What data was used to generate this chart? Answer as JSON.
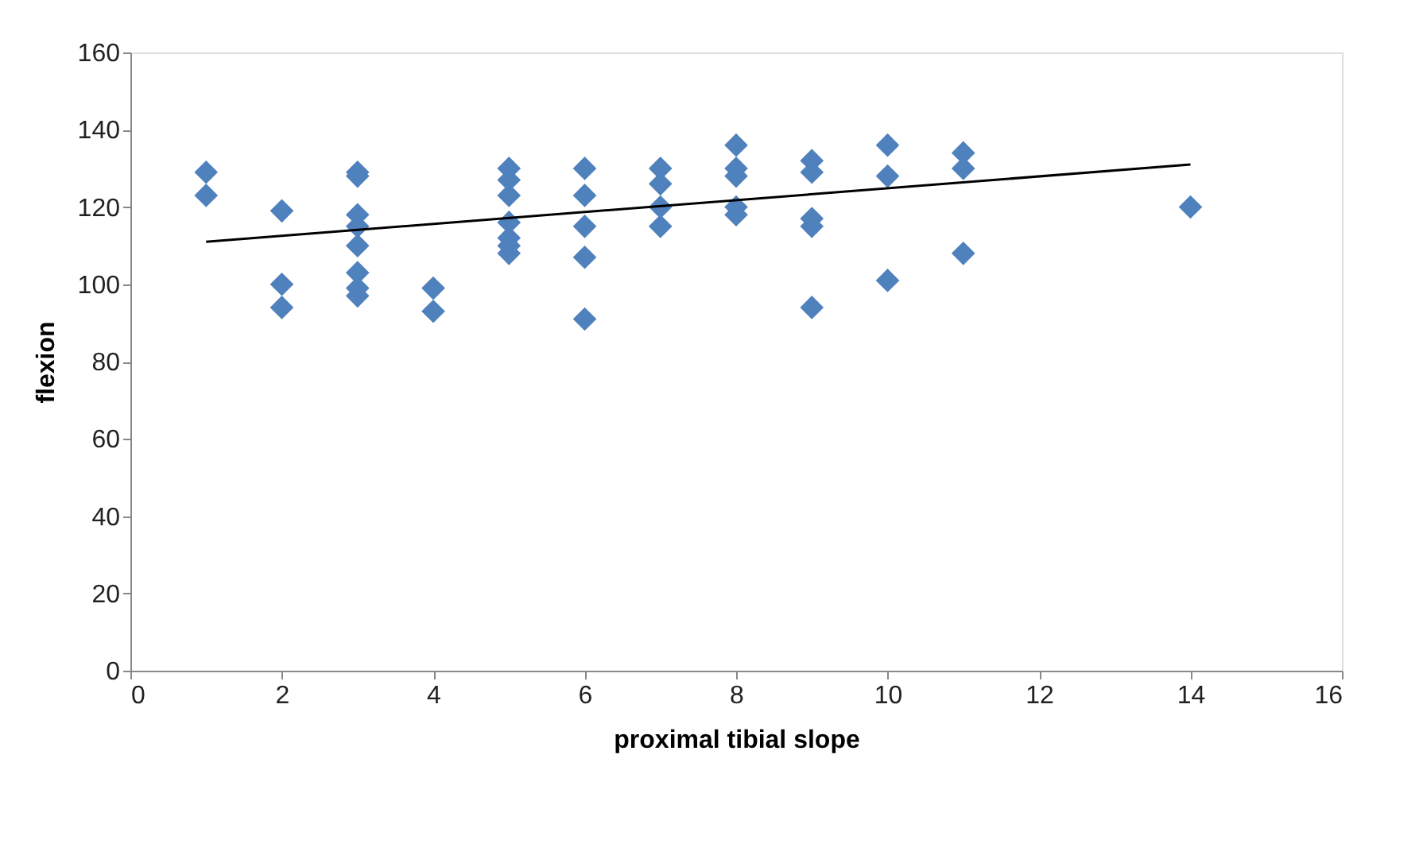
{
  "chart_data": {
    "type": "scatter",
    "xlabel": "proximal tibial slope",
    "ylabel": "flexion",
    "xlim": [
      0,
      16
    ],
    "xticks": [
      0,
      2,
      4,
      6,
      8,
      10,
      12,
      14,
      16
    ],
    "ylim": [
      0,
      160
    ],
    "yticks": [
      0,
      20,
      40,
      60,
      80,
      100,
      120,
      140,
      160
    ],
    "grid": false,
    "legend": false,
    "marker": "diamond",
    "series": [
      {
        "color": "#4f81bd",
        "x": [
          1,
          1,
          2,
          2,
          2,
          3,
          3,
          3,
          3,
          3,
          3,
          3,
          3,
          4,
          4,
          5,
          5,
          5,
          5,
          5,
          5,
          5,
          6,
          6,
          6,
          6,
          6,
          7,
          7,
          7,
          7,
          8,
          8,
          8,
          8,
          8,
          9,
          9,
          9,
          9,
          9,
          10,
          10,
          10,
          11,
          11,
          11,
          14
        ],
        "values": [
          129,
          123,
          119,
          100,
          94,
          129,
          128,
          118,
          115,
          110,
          103,
          99,
          97,
          99,
          93,
          130,
          127,
          123,
          116,
          112,
          110,
          108,
          130,
          123,
          115,
          107,
          91,
          130,
          126,
          120,
          115,
          136,
          130,
          128,
          120,
          118,
          132,
          129,
          117,
          115,
          94,
          136,
          128,
          101,
          134,
          130,
          108,
          120
        ]
      },
      {
        "type": "line",
        "color": "#000000",
        "marker": "none",
        "x": [
          1,
          14
        ],
        "values": [
          111,
          131
        ]
      }
    ]
  }
}
